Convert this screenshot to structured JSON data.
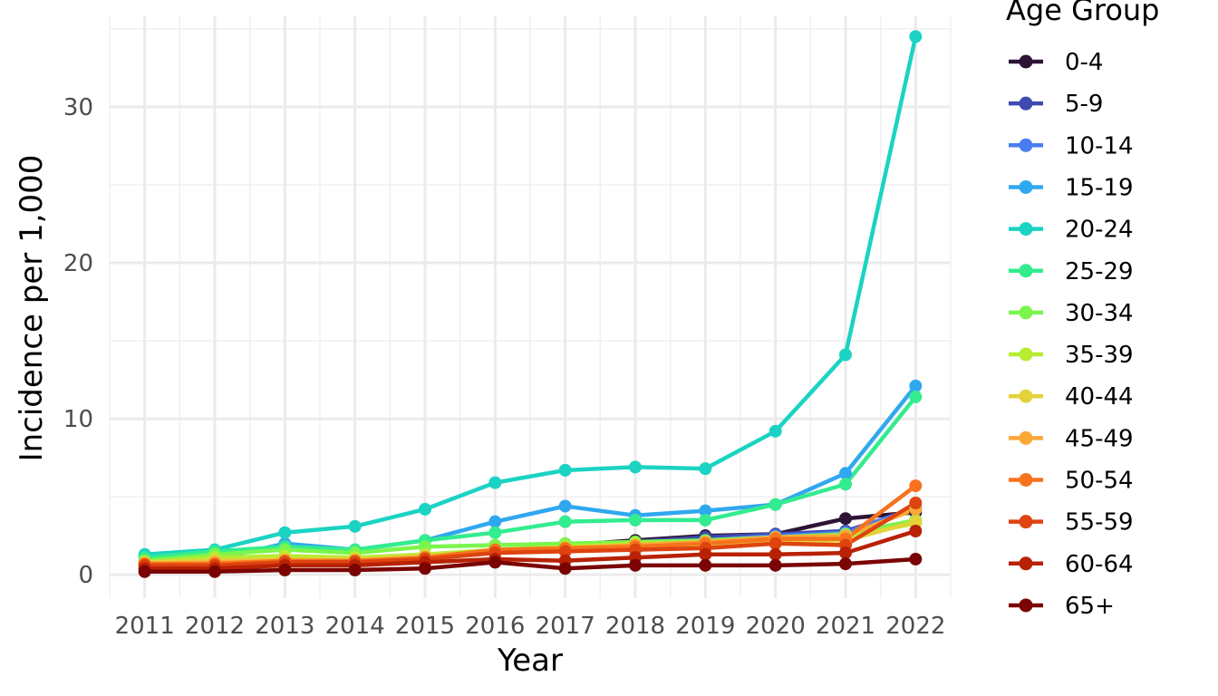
{
  "chart_data": {
    "type": "line",
    "title": "",
    "xlabel": "Year",
    "ylabel": "Incidence per 1,000",
    "x": [
      2011,
      2012,
      2013,
      2014,
      2015,
      2016,
      2017,
      2018,
      2019,
      2020,
      2021,
      2022
    ],
    "xlim": [
      2010.5,
      2022.5
    ],
    "ylim": [
      -1.5,
      35.8
    ],
    "y_ticks": [
      0,
      10,
      20,
      30
    ],
    "grid": true,
    "legend_title": "Age Group",
    "legend_position": "right",
    "series": [
      {
        "name": "0-4",
        "color": "#2d1436",
        "values": [
          0.7,
          0.6,
          0.9,
          0.8,
          1.0,
          1.5,
          1.9,
          2.2,
          2.5,
          2.6,
          3.6,
          4.0
        ]
      },
      {
        "name": "5-9",
        "color": "#3d4bb0",
        "values": [
          0.7,
          0.7,
          0.9,
          0.8,
          1.0,
          1.5,
          1.8,
          2.1,
          2.4,
          2.6,
          2.8,
          4.2
        ]
      },
      {
        "name": "10-14",
        "color": "#4a7ef0",
        "values": [
          0.8,
          0.8,
          1.0,
          0.9,
          1.1,
          1.5,
          1.7,
          2.0,
          2.2,
          2.5,
          2.7,
          4.3
        ]
      },
      {
        "name": "15-19",
        "color": "#30a8f0",
        "values": [
          0.8,
          1.0,
          2.0,
          1.6,
          2.2,
          3.4,
          4.4,
          3.8,
          4.1,
          4.5,
          6.5,
          12.1
        ]
      },
      {
        "name": "20-24",
        "color": "#1bd3c3",
        "values": [
          1.3,
          1.6,
          2.7,
          3.1,
          4.2,
          5.9,
          6.7,
          6.9,
          6.8,
          9.2,
          14.1,
          34.5
        ]
      },
      {
        "name": "25-29",
        "color": "#33ec8f",
        "values": [
          1.1,
          1.5,
          1.8,
          1.6,
          2.2,
          2.7,
          3.4,
          3.5,
          3.5,
          4.5,
          5.8,
          11.4
        ]
      },
      {
        "name": "30-34",
        "color": "#7bf54c",
        "values": [
          0.9,
          1.3,
          1.6,
          1.4,
          1.8,
          1.9,
          2.0,
          2.1,
          2.2,
          2.4,
          2.6,
          3.5
        ]
      },
      {
        "name": "35-39",
        "color": "#b6ec32",
        "values": [
          0.8,
          1.1,
          1.2,
          1.1,
          1.3,
          1.6,
          1.8,
          2.0,
          2.1,
          2.3,
          2.4,
          3.3
        ]
      },
      {
        "name": "40-44",
        "color": "#e3d23a",
        "values": [
          0.8,
          0.9,
          1.0,
          1.0,
          1.2,
          1.5,
          1.7,
          1.8,
          1.9,
          2.1,
          2.2,
          3.4
        ]
      },
      {
        "name": "45-49",
        "color": "#fba837",
        "values": [
          0.7,
          0.8,
          0.9,
          0.9,
          1.1,
          1.5,
          1.7,
          1.9,
          2.1,
          2.4,
          2.5,
          4.2
        ]
      },
      {
        "name": "50-54",
        "color": "#f7731d",
        "values": [
          0.7,
          0.7,
          0.9,
          0.9,
          1.1,
          1.6,
          1.7,
          1.8,
          2.0,
          2.3,
          2.3,
          5.7
        ]
      },
      {
        "name": "55-59",
        "color": "#de4310",
        "values": [
          0.6,
          0.6,
          0.8,
          0.8,
          1.0,
          1.4,
          1.5,
          1.6,
          1.7,
          2.0,
          1.9,
          4.6
        ]
      },
      {
        "name": "60-64",
        "color": "#b82104",
        "values": [
          0.4,
          0.4,
          0.6,
          0.6,
          0.8,
          1.0,
          0.9,
          1.1,
          1.3,
          1.3,
          1.4,
          2.8
        ]
      },
      {
        "name": "65+",
        "color": "#7a0403",
        "values": [
          0.2,
          0.2,
          0.3,
          0.3,
          0.4,
          0.8,
          0.4,
          0.6,
          0.6,
          0.6,
          0.7,
          1.0
        ]
      }
    ]
  }
}
